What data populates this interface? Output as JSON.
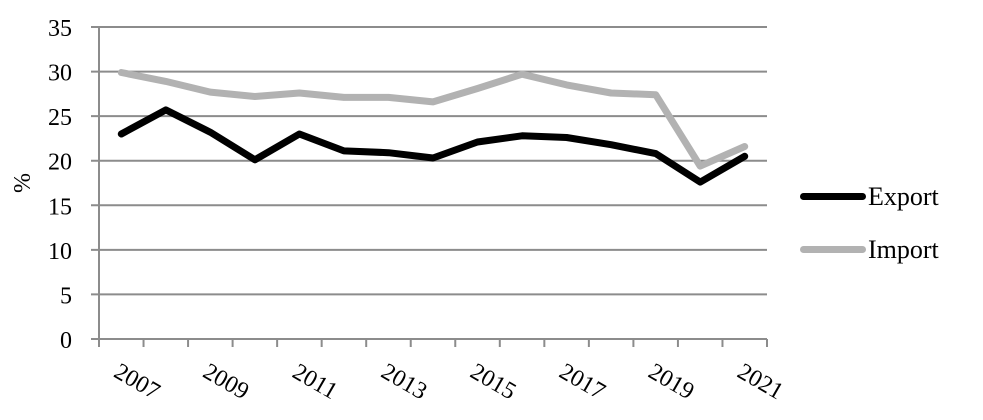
{
  "chart_data": {
    "type": "line",
    "title": "",
    "xlabel": "",
    "ylabel": "%",
    "ylim": [
      0,
      35
    ],
    "yticks": [
      0,
      5,
      10,
      15,
      20,
      25,
      30,
      35
    ],
    "grid": true,
    "legend_position": "right",
    "categories": [
      "2007",
      "2008",
      "2009",
      "2010",
      "2011",
      "2012",
      "2013",
      "2014",
      "2015",
      "2016",
      "2017",
      "2018",
      "2019",
      "2020",
      "2021"
    ],
    "xtick_labels": [
      "2007",
      "2009",
      "2011",
      "2013",
      "2015",
      "2017",
      "2019",
      "2021"
    ],
    "series": [
      {
        "name": "Export",
        "color": "#000000",
        "values": [
          23.0,
          25.7,
          23.2,
          20.1,
          23.0,
          21.1,
          20.9,
          20.3,
          22.1,
          22.8,
          22.6,
          21.8,
          20.8,
          17.6,
          20.5
        ]
      },
      {
        "name": "Import",
        "color": "#b2b2b2",
        "values": [
          29.9,
          28.9,
          27.7,
          27.2,
          27.6,
          27.1,
          27.1,
          26.6,
          28.1,
          29.7,
          28.5,
          27.6,
          27.4,
          19.4,
          21.6
        ]
      }
    ]
  },
  "legend": {
    "items": [
      {
        "label": "Export",
        "color": "#000000"
      },
      {
        "label": "Import",
        "color": "#b2b2b2"
      }
    ]
  }
}
